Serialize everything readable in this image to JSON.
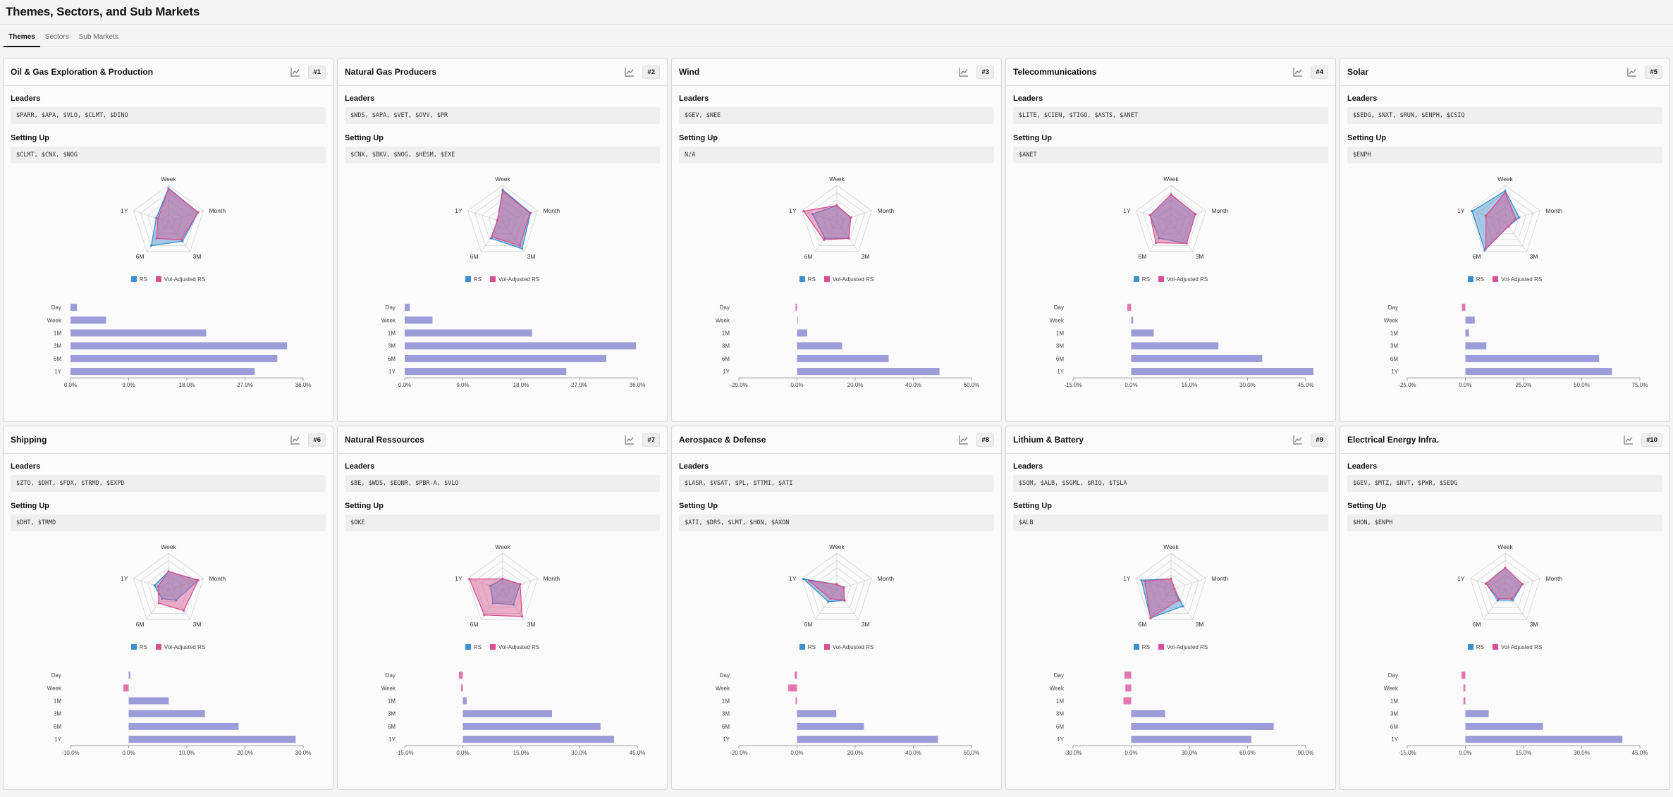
{
  "page_title": "Themes, Sectors, and Sub Markets",
  "tabs": [
    {
      "label": "Themes",
      "active": true
    },
    {
      "label": "Sectors",
      "active": false
    },
    {
      "label": "Sub Markets",
      "active": false
    }
  ],
  "labels": {
    "leaders": "Leaders",
    "setting_up": "Setting Up"
  },
  "legend": {
    "rs": "RS",
    "vol_adjusted": "Vol-Adjusted RS"
  },
  "radar_axes": [
    "Week",
    "Month",
    "3M",
    "6M",
    "1Y"
  ],
  "bar_categories": [
    "Day",
    "Week",
    "1M",
    "3M",
    "6M",
    "1Y"
  ],
  "colors": {
    "rs": "#3b8fcf",
    "vol": "#d8508f",
    "bar_pos": "#9c9cd8",
    "bar_neg": "#e377ad",
    "grid": "#d4d4d4"
  },
  "cards": [
    {
      "title": "Oil & Gas Exploration & Production",
      "rank": "#1",
      "leaders": "$PARR, $APA, $VLO, $CLMT, $DINO",
      "setting_up": "$CLMT, $CNX, $NOG",
      "radar": {
        "rs": [
          0.92,
          0.85,
          0.65,
          0.8,
          0.35
        ],
        "vol": [
          0.9,
          0.85,
          0.6,
          0.55,
          0.3
        ]
      },
      "chart_data": {
        "type": "bar",
        "categories": [
          "Day",
          "Week",
          "1M",
          "3M",
          "6M",
          "1Y"
        ],
        "values": [
          1.0,
          5.5,
          21.0,
          33.5,
          32.0,
          28.5
        ],
        "xlim": [
          0,
          36
        ],
        "ticks": [
          "0.0%",
          "9.0%",
          "18.0%",
          "27.0%",
          "36.0%"
        ]
      }
    },
    {
      "title": "Natural Gas Producers",
      "rank": "#2",
      "leaders": "$WDS, $APA, $VET, $OVV, $PR",
      "setting_up": "$CNX, $BKV, $NOG, $HESM, $EXE",
      "radar": {
        "rs": [
          0.88,
          0.8,
          0.9,
          0.55,
          0.15
        ],
        "vol": [
          0.85,
          0.78,
          0.8,
          0.5,
          0.15
        ]
      },
      "chart_data": {
        "type": "bar",
        "categories": [
          "Day",
          "Week",
          "1M",
          "3M",
          "6M",
          "1Y"
        ],
        "values": [
          0.8,
          4.3,
          19.7,
          35.8,
          31.2,
          25.0
        ],
        "xlim": [
          0,
          36
        ],
        "ticks": [
          "0.0%",
          "9.0%",
          "18.0%",
          "27.0%",
          "36.0%"
        ]
      }
    },
    {
      "title": "Wind",
      "rank": "#3",
      "leaders": "$GEV, $NEE",
      "setting_up": "N/A",
      "radar": {
        "rs": [
          0.45,
          0.4,
          0.55,
          0.55,
          0.7
        ],
        "vol": [
          0.45,
          0.4,
          0.55,
          0.6,
          0.95
        ]
      },
      "chart_data": {
        "type": "bar",
        "categories": [
          "Day",
          "Week",
          "1M",
          "3M",
          "6M",
          "1Y"
        ],
        "values": [
          -0.5,
          0.2,
          3.5,
          15.5,
          31.5,
          49.0
        ],
        "xlim": [
          -20,
          60
        ],
        "ticks": [
          "-20.0%",
          "0.0%",
          "20.0%",
          "40.0%",
          "60.0%"
        ]
      }
    },
    {
      "title": "Telecommunications",
      "rank": "#4",
      "leaders": "$LITE, $CIEN, $TIGO, $ASTS, $ANET",
      "setting_up": "$ANET",
      "radar": {
        "rs": [
          0.75,
          0.7,
          0.72,
          0.55,
          0.6
        ],
        "vol": [
          0.75,
          0.7,
          0.72,
          0.7,
          0.6
        ]
      },
      "chart_data": {
        "type": "bar",
        "categories": [
          "Day",
          "Week",
          "1M",
          "3M",
          "6M",
          "1Y"
        ],
        "values": [
          -1.0,
          0.5,
          5.8,
          22.5,
          33.8,
          47.0
        ],
        "xlim": [
          -15,
          45
        ],
        "ticks": [
          "-15.0%",
          "0.0%",
          "15.0%",
          "30.0%",
          "45.0%"
        ]
      }
    },
    {
      "title": "Solar",
      "rank": "#5",
      "leaders": "$SEDG, $NXT, $RUN, $ENPH, $CSIQ",
      "setting_up": "$ENPH",
      "radar": {
        "rs": [
          0.85,
          0.4,
          0.15,
          0.95,
          0.95
        ],
        "vol": [
          0.8,
          0.3,
          0.15,
          0.9,
          0.55
        ]
      },
      "chart_data": {
        "type": "bar",
        "categories": [
          "Day",
          "Week",
          "1M",
          "3M",
          "6M",
          "1Y"
        ],
        "values": [
          -1.5,
          4.0,
          1.5,
          9.0,
          57.5,
          63.0
        ],
        "xlim": [
          -25,
          75
        ],
        "ticks": [
          "-25.0%",
          "0.0%",
          "25.0%",
          "50.0%",
          "75.0%"
        ]
      }
    },
    {
      "title": "Shipping",
      "rank": "#6",
      "leaders": "$ZTO, $DHT, $FDX, $TRMD, $EXPD",
      "setting_up": "$DHT, $TRMD",
      "radar": {
        "rs": [
          0.5,
          0.85,
          0.35,
          0.3,
          0.4
        ],
        "vol": [
          0.5,
          0.85,
          0.7,
          0.45,
          0.3
        ]
      },
      "chart_data": {
        "type": "bar",
        "categories": [
          "Day",
          "Week",
          "1M",
          "3M",
          "6M",
          "1Y"
        ],
        "values": [
          0.3,
          -0.9,
          6.9,
          13.1,
          18.9,
          28.7
        ],
        "xlim": [
          -10,
          30
        ],
        "ticks": [
          "-10.0%",
          "0.0%",
          "10.0%",
          "20.0%",
          "30.0%"
        ]
      }
    },
    {
      "title": "Natural Ressources",
      "rank": "#7",
      "leaders": "$BE, $WDS, $EQNR, $PBR-A, $VLO",
      "setting_up": "$OKE",
      "radar": {
        "rs": [
          0.3,
          0.5,
          0.5,
          0.45,
          0.35
        ],
        "vol": [
          0.3,
          0.5,
          0.9,
          0.85,
          0.95
        ]
      },
      "chart_data": {
        "type": "bar",
        "categories": [
          "Day",
          "Week",
          "1M",
          "3M",
          "6M",
          "1Y"
        ],
        "values": [
          -1.0,
          -0.5,
          1.0,
          23.0,
          35.5,
          39.0
        ],
        "xlim": [
          -15,
          45
        ],
        "ticks": [
          "-15.0%",
          "0.0%",
          "15.0%",
          "30.0%",
          "45.0%"
        ]
      }
    },
    {
      "title": "Aerospace & Defense",
      "rank": "#8",
      "leaders": "$LASR, $VSAT, $PL, $TTMI, $ATI",
      "setting_up": "$ATI, $DRS, $LMT, $HON, $AXON",
      "radar": {
        "rs": [
          0.15,
          0.2,
          0.35,
          0.4,
          0.95
        ],
        "vol": [
          0.15,
          0.2,
          0.35,
          0.3,
          0.8
        ]
      },
      "chart_data": {
        "type": "bar",
        "categories": [
          "Day",
          "Week",
          "1M",
          "3M",
          "6M",
          "1Y"
        ],
        "values": [
          -0.8,
          -3.0,
          -0.5,
          13.5,
          23.0,
          48.5
        ],
        "xlim": [
          -20,
          60
        ],
        "ticks": [
          "-20.0%",
          "0.0%",
          "20.0%",
          "40.0%",
          "60.0%"
        ]
      }
    },
    {
      "title": "Lithium & Battery",
      "rank": "#9",
      "leaders": "$SQM, $ALB, $SGML, $RIO, $TSLA",
      "setting_up": "$ALB",
      "radar": {
        "rs": [
          0.3,
          0.1,
          0.55,
          0.95,
          0.85
        ],
        "vol": [
          0.3,
          0.1,
          0.35,
          0.95,
          0.75
        ]
      },
      "chart_data": {
        "type": "bar",
        "categories": [
          "Day",
          "Week",
          "1M",
          "3M",
          "6M",
          "1Y"
        ],
        "values": [
          -3.5,
          -3.0,
          -4.0,
          17.5,
          73.5,
          62.0
        ],
        "xlim": [
          -30,
          90
        ],
        "ticks": [
          "-30.0%",
          "0.0%",
          "30.0%",
          "60.0%",
          "90.0%"
        ]
      }
    },
    {
      "title": "Electrical Energy Infra.",
      "rank": "#10",
      "leaders": "$GEV, $MTZ, $NVT, $PWR, $SEDG",
      "setting_up": "$HON, $ENPH",
      "radar": {
        "rs": [
          0.6,
          0.5,
          0.35,
          0.35,
          0.55
        ],
        "vol": [
          0.6,
          0.5,
          0.3,
          0.3,
          0.55
        ]
      },
      "chart_data": {
        "type": "bar",
        "categories": [
          "Day",
          "Week",
          "1M",
          "3M",
          "6M",
          "1Y"
        ],
        "values": [
          -1.0,
          -0.5,
          -0.5,
          6.0,
          20.0,
          40.5
        ],
        "xlim": [
          -15,
          45
        ],
        "ticks": [
          "-15.0%",
          "0.0%",
          "15.0%",
          "30.0%",
          "45.0%"
        ]
      }
    }
  ]
}
